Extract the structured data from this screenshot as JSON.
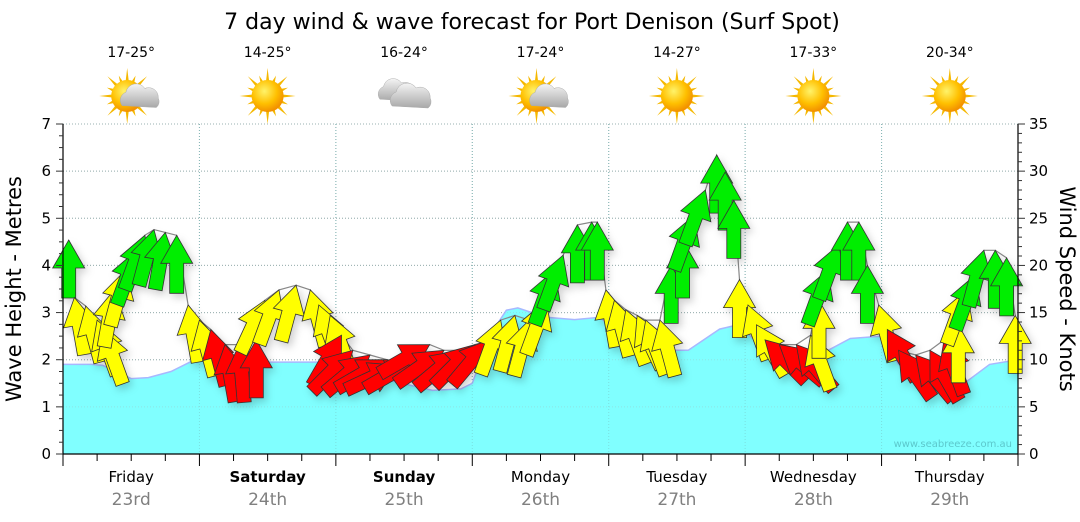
{
  "chart_data": {
    "type": "line",
    "title": "7 day wind & wave forecast for Port Denison (Surf Spot)",
    "ylabel": "Wave Height - Metres",
    "y2label": "Wind Speed - Knots",
    "ylim": [
      0,
      7
    ],
    "y2lim": [
      0,
      35
    ],
    "yticks": [
      "0",
      "1",
      "2",
      "3",
      "4",
      "5",
      "6",
      "7"
    ],
    "y2ticks": [
      "0",
      "5",
      "10",
      "15",
      "20",
      "25",
      "30",
      "35"
    ],
    "grid": true,
    "watermark": "www.seabreeze.com.au",
    "days": [
      {
        "day": "Friday",
        "date": "23rd",
        "bold": false,
        "temp": "17-25°",
        "weather": "partly-cloudy"
      },
      {
        "day": "Saturday",
        "date": "24th",
        "bold": true,
        "temp": "14-25°",
        "weather": "sunny"
      },
      {
        "day": "Sunday",
        "date": "25th",
        "bold": true,
        "temp": "16-24°",
        "weather": "cloudy"
      },
      {
        "day": "Monday",
        "date": "26th",
        "bold": false,
        "temp": "17-24°",
        "weather": "partly-cloudy"
      },
      {
        "day": "Tuesday",
        "date": "27th",
        "bold": false,
        "temp": "14-27°",
        "weather": "sunny"
      },
      {
        "day": "Wednesday",
        "date": "28th",
        "bold": false,
        "temp": "17-33°",
        "weather": "sunny"
      },
      {
        "day": "Thursday",
        "date": "29th",
        "bold": false,
        "temp": "20-34°",
        "weather": "sunny"
      }
    ],
    "x_unit": "hours from Friday 00:00",
    "wave_height_m": [
      [
        0,
        1.9
      ],
      [
        5,
        1.9
      ],
      [
        7,
        1.88
      ],
      [
        12,
        1.6
      ],
      [
        15,
        1.62
      ],
      [
        19,
        1.75
      ],
      [
        24,
        2.05
      ],
      [
        29,
        2.05
      ],
      [
        35,
        1.95
      ],
      [
        45,
        1.95
      ],
      [
        48,
        1.88
      ],
      [
        56,
        1.6
      ],
      [
        65,
        1.35
      ],
      [
        70,
        1.38
      ],
      [
        72,
        1.5
      ],
      [
        75,
        2.5
      ],
      [
        78,
        3.05
      ],
      [
        80,
        3.1
      ],
      [
        85,
        2.9
      ],
      [
        90,
        2.85
      ],
      [
        94.5,
        2.9
      ],
      [
        98,
        2.5
      ],
      [
        101.5,
        2.2
      ],
      [
        110,
        2.2
      ],
      [
        115.5,
        2.65
      ],
      [
        119,
        2.75
      ],
      [
        122.5,
        2.3
      ],
      [
        128,
        2.0
      ],
      [
        131.5,
        2.0
      ],
      [
        138.5,
        2.45
      ],
      [
        144,
        2.5
      ],
      [
        147,
        1.9
      ],
      [
        152.5,
        1.55
      ],
      [
        158,
        1.45
      ],
      [
        163,
        1.9
      ],
      [
        168,
        2.0
      ]
    ],
    "colors": {
      "wave": "#80ffff",
      "wave_edge": "#a8b8ff",
      "green": "#00ee00",
      "yellow": "#ffff00",
      "red": "#ff0000"
    },
    "wind": [
      {
        "h": 1,
        "kn": 22.7,
        "c": "green",
        "dir": 0
      },
      {
        "h": 2,
        "kn": 16.6,
        "c": "yellow",
        "dir": -10
      },
      {
        "h": 4,
        "kn": 15.7,
        "c": "yellow",
        "dir": -15
      },
      {
        "h": 6,
        "kn": 14.2,
        "c": "yellow",
        "dir": -20
      },
      {
        "h": 7,
        "kn": 13.2,
        "c": "yellow",
        "dir": -20
      },
      {
        "h": 9,
        "kn": 17.4,
        "c": "yellow",
        "dir": 10
      },
      {
        "h": 11,
        "kn": 19.5,
        "c": "yellow",
        "dir": 15
      },
      {
        "h": 13,
        "kn": 21.6,
        "c": "green",
        "dir": 20
      },
      {
        "h": 14.4,
        "kn": 23.2,
        "c": "green",
        "dir": 20
      },
      {
        "h": 16,
        "kn": 23.8,
        "c": "green",
        "dir": 15
      },
      {
        "h": 18,
        "kn": 23.5,
        "c": "green",
        "dir": 10
      },
      {
        "h": 20,
        "kn": 23.2,
        "c": "green",
        "dir": 0
      },
      {
        "h": 22,
        "kn": 15.8,
        "c": "yellow",
        "dir": -10
      },
      {
        "h": 24,
        "kn": 14.2,
        "c": "yellow",
        "dir": -15
      },
      {
        "h": 26,
        "kn": 13.2,
        "c": "red",
        "dir": -15
      },
      {
        "h": 28.5,
        "kn": 11.6,
        "c": "red",
        "dir": -10
      },
      {
        "h": 31,
        "kn": 11.6,
        "c": "red",
        "dir": -5
      },
      {
        "h": 34,
        "kn": 12.1,
        "c": "red",
        "dir": 0
      },
      {
        "h": 35.5,
        "kn": 16.3,
        "c": "yellow",
        "dir": 25
      },
      {
        "h": 38,
        "kn": 17.4,
        "c": "yellow",
        "dir": 20
      },
      {
        "h": 41,
        "kn": 17.9,
        "c": "yellow",
        "dir": 15
      },
      {
        "h": 43.5,
        "kn": 17.4,
        "c": "yellow",
        "dir": -15
      },
      {
        "h": 45,
        "kn": 15.8,
        "c": "yellow",
        "dir": -20
      },
      {
        "h": 47,
        "kn": 14.7,
        "c": "yellow",
        "dir": -20
      },
      {
        "h": 49,
        "kn": 12.6,
        "c": "red",
        "dir": 30
      },
      {
        "h": 51,
        "kn": 11,
        "c": "red",
        "dir": 45
      },
      {
        "h": 54,
        "kn": 10.5,
        "c": "red",
        "dir": 50
      },
      {
        "h": 57,
        "kn": 10,
        "c": "red",
        "dir": 60
      },
      {
        "h": 59,
        "kn": 9.4,
        "c": "red",
        "dir": 65
      },
      {
        "h": 62,
        "kn": 10,
        "c": "red",
        "dir": 60
      },
      {
        "h": 64.5,
        "kn": 11.6,
        "c": "red",
        "dir": 60
      },
      {
        "h": 67,
        "kn": 11,
        "c": "red",
        "dir": 55
      },
      {
        "h": 70,
        "kn": 11,
        "c": "red",
        "dir": 50
      },
      {
        "h": 72.5,
        "kn": 11.6,
        "c": "red",
        "dir": 45
      },
      {
        "h": 75,
        "kn": 12.1,
        "c": "red",
        "dir": 40
      },
      {
        "h": 77,
        "kn": 14.2,
        "c": "yellow",
        "dir": 20
      },
      {
        "h": 79.5,
        "kn": 14.7,
        "c": "yellow",
        "dir": 15
      },
      {
        "h": 82,
        "kn": 14.2,
        "c": "yellow",
        "dir": 15
      },
      {
        "h": 85,
        "kn": 16.3,
        "c": "yellow",
        "dir": 20
      },
      {
        "h": 86.5,
        "kn": 19.5,
        "c": "green",
        "dir": 20
      },
      {
        "h": 88,
        "kn": 21.1,
        "c": "green",
        "dir": 20
      },
      {
        "h": 90.5,
        "kn": 24.3,
        "c": "green",
        "dir": 0
      },
      {
        "h": 93,
        "kn": 24.6,
        "c": "green",
        "dir": 0
      },
      {
        "h": 94,
        "kn": 24.6,
        "c": "green",
        "dir": 0
      },
      {
        "h": 95.5,
        "kn": 17.4,
        "c": "yellow",
        "dir": -10
      },
      {
        "h": 97,
        "kn": 16.3,
        "c": "yellow",
        "dir": -15
      },
      {
        "h": 99,
        "kn": 15.3,
        "c": "yellow",
        "dir": -20
      },
      {
        "h": 101,
        "kn": 14.7,
        "c": "yellow",
        "dir": -25
      },
      {
        "h": 102.5,
        "kn": 14.2,
        "c": "yellow",
        "dir": -20
      },
      {
        "h": 105,
        "kn": 14.2,
        "c": "yellow",
        "dir": -15
      },
      {
        "h": 107,
        "kn": 20,
        "c": "green",
        "dir": 0
      },
      {
        "h": 109,
        "kn": 22.7,
        "c": "green",
        "dir": 0
      },
      {
        "h": 111,
        "kn": 25.3,
        "c": "green",
        "dir": 20
      },
      {
        "h": 113,
        "kn": 28,
        "c": "green",
        "dir": 20
      },
      {
        "h": 115,
        "kn": 31.7,
        "c": "green",
        "dir": 0
      },
      {
        "h": 116.5,
        "kn": 29.9,
        "c": "green",
        "dir": 0
      },
      {
        "h": 118,
        "kn": 26.9,
        "c": "green",
        "dir": 0
      },
      {
        "h": 119,
        "kn": 18.5,
        "c": "yellow",
        "dir": 0
      },
      {
        "h": 120.5,
        "kn": 15.8,
        "c": "yellow",
        "dir": -20
      },
      {
        "h": 122,
        "kn": 13.7,
        "c": "yellow",
        "dir": -30
      },
      {
        "h": 123.5,
        "kn": 12.1,
        "c": "red",
        "dir": -45
      },
      {
        "h": 126,
        "kn": 11.6,
        "c": "red",
        "dir": -50
      },
      {
        "h": 129,
        "kn": 11.6,
        "c": "red",
        "dir": -40
      },
      {
        "h": 131.5,
        "kn": 12.6,
        "c": "yellow",
        "dir": -20
      },
      {
        "h": 133,
        "kn": 16.3,
        "c": "yellow",
        "dir": 0
      },
      {
        "h": 134.5,
        "kn": 19.5,
        "c": "green",
        "dir": 20
      },
      {
        "h": 136.5,
        "kn": 22.2,
        "c": "green",
        "dir": 20
      },
      {
        "h": 138,
        "kn": 24.6,
        "c": "green",
        "dir": 0
      },
      {
        "h": 140,
        "kn": 24.6,
        "c": "green",
        "dir": 0
      },
      {
        "h": 141.5,
        "kn": 20,
        "c": "green",
        "dir": 0
      },
      {
        "h": 143.5,
        "kn": 15.8,
        "c": "yellow",
        "dir": -15
      },
      {
        "h": 145,
        "kn": 13.2,
        "c": "red",
        "dir": -30
      },
      {
        "h": 147,
        "kn": 11,
        "c": "red",
        "dir": -35
      },
      {
        "h": 150,
        "kn": 10.5,
        "c": "red",
        "dir": -40
      },
      {
        "h": 152.5,
        "kn": 11,
        "c": "red",
        "dir": -30
      },
      {
        "h": 155,
        "kn": 12.1,
        "c": "red",
        "dir": -20
      },
      {
        "h": 157.5,
        "kn": 13.7,
        "c": "yellow",
        "dir": 0
      },
      {
        "h": 159,
        "kn": 17.4,
        "c": "yellow",
        "dir": 20
      },
      {
        "h": 160.5,
        "kn": 19,
        "c": "green",
        "dir": 20
      },
      {
        "h": 162,
        "kn": 21.6,
        "c": "green",
        "dir": 15
      },
      {
        "h": 164,
        "kn": 21.6,
        "c": "green",
        "dir": 0
      },
      {
        "h": 166,
        "kn": 20.8,
        "c": "green",
        "dir": 0
      },
      {
        "h": 167.5,
        "kn": 14.7,
        "c": "yellow",
        "dir": 0
      }
    ]
  }
}
